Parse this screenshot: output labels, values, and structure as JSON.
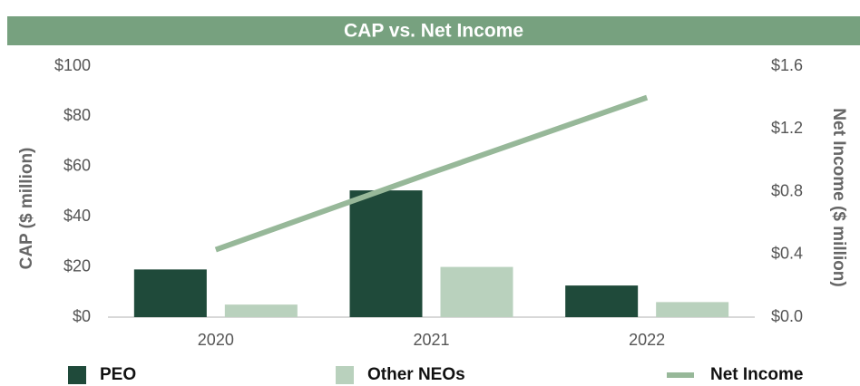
{
  "chart_data": {
    "type": "bar",
    "title": "CAP vs. Net Income",
    "y_label": "CAP ($ million)",
    "y2_label": "Net Income ($ million)",
    "categories": [
      "2020",
      "2021",
      "2022"
    ],
    "series": [
      {
        "name": "PEO",
        "type": "bar",
        "color": "#1f4a3a",
        "values": [
          19,
          50.5,
          12.6
        ]
      },
      {
        "name": "Other NEOs",
        "type": "bar",
        "color": "#b9d1bd",
        "values": [
          5,
          20,
          6
        ]
      },
      {
        "name": "Net Income",
        "type": "line",
        "axis": "y2",
        "color": "#97b899",
        "values": [
          0.43,
          0.92,
          1.4
        ]
      }
    ],
    "ylim": [
      0,
      100
    ],
    "yticks": [
      {
        "value": 0,
        "label": "$0"
      },
      {
        "value": 20,
        "label": "$20"
      },
      {
        "value": 40,
        "label": "$40"
      },
      {
        "value": 60,
        "label": "$60"
      },
      {
        "value": 80,
        "label": "$80"
      },
      {
        "value": 100,
        "label": "$100"
      }
    ],
    "y2lim": [
      0,
      1.6
    ],
    "y2ticks": [
      {
        "value": 0,
        "label": "$0.0"
      },
      {
        "value": 0.4,
        "label": "$0.4"
      },
      {
        "value": 0.8,
        "label": "$0.8"
      },
      {
        "value": 1.2,
        "label": "$1.2"
      },
      {
        "value": 1.6,
        "label": "$1.6"
      }
    ],
    "legend": "bottom"
  }
}
